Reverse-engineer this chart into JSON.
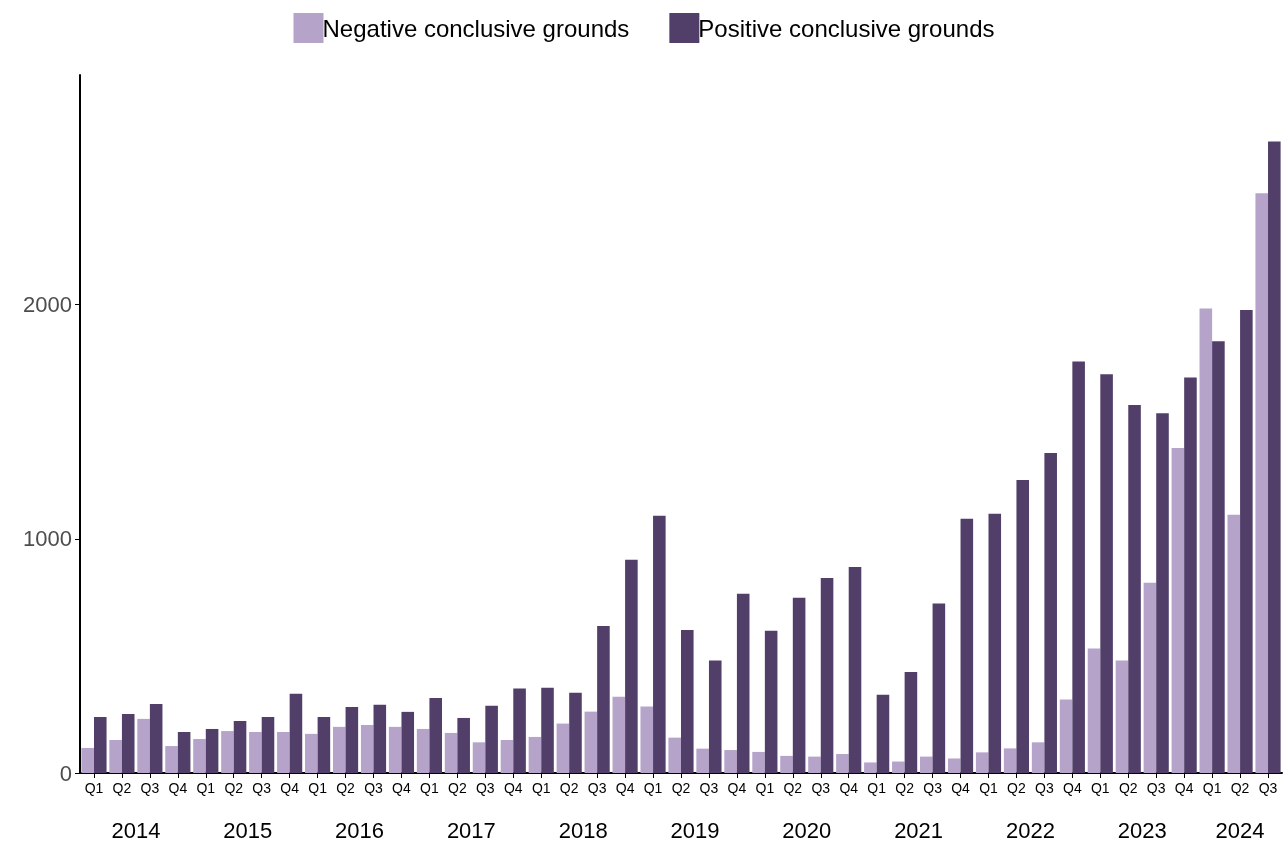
{
  "chart_data": {
    "type": "bar",
    "categories": [
      "Q1",
      "Q2",
      "Q3",
      "Q4",
      "Q1",
      "Q2",
      "Q3",
      "Q4",
      "Q1",
      "Q2",
      "Q3",
      "Q4",
      "Q1",
      "Q2",
      "Q3",
      "Q4",
      "Q1",
      "Q2",
      "Q3",
      "Q4",
      "Q1",
      "Q2",
      "Q3",
      "Q4",
      "Q1",
      "Q2",
      "Q3",
      "Q4",
      "Q1",
      "Q2",
      "Q3",
      "Q4",
      "Q1",
      "Q2",
      "Q3",
      "Q4",
      "Q1",
      "Q2",
      "Q3",
      "Q4",
      "Q1",
      "Q2",
      "Q3"
    ],
    "series": [
      {
        "name": "Negative conclusive grounds",
        "color": "#b5a3c9",
        "values": [
          107,
          141,
          231,
          115,
          145,
          179,
          175,
          175,
          167,
          197,
          205,
          197,
          188,
          171,
          131,
          141,
          154,
          211,
          262,
          326,
          284,
          151,
          104,
          98,
          90,
          73,
          70,
          81,
          45,
          49,
          70,
          62,
          88,
          105,
          131,
          314,
          531,
          480,
          812,
          1388,
          1983,
          1103,
          2475
        ]
      },
      {
        "name": "Positive conclusive grounds",
        "color": "#523f69",
        "values": [
          239,
          252,
          295,
          175,
          188,
          222,
          239,
          338,
          239,
          282,
          291,
          261,
          320,
          235,
          287,
          361,
          364,
          343,
          628,
          910,
          1098,
          611,
          480,
          765,
          607,
          748,
          833,
          880,
          334,
          431,
          724,
          1085,
          1107,
          1251,
          1366,
          1757,
          1702,
          1571,
          1536,
          1688,
          1843,
          1977,
          2696
        ]
      }
    ],
    "annotations": [
      "2014",
      "2015",
      "2016",
      "2017",
      "2018",
      "2019",
      "2020",
      "2021",
      "2022",
      "2023",
      "2024"
    ],
    "ylim": [
      0,
      2980
    ],
    "yticks": [
      0,
      1000,
      2000
    ],
    "grid": false,
    "legend": "top"
  }
}
